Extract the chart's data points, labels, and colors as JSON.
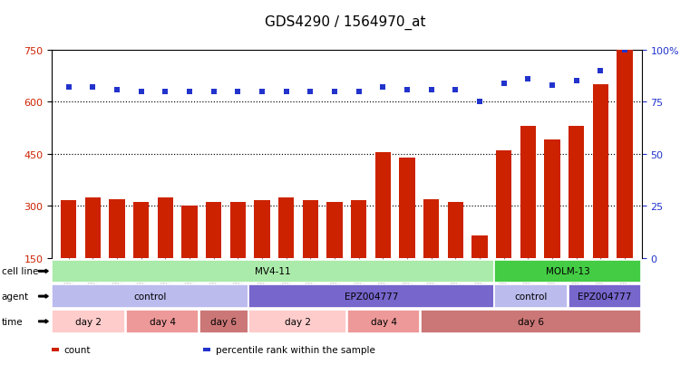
{
  "title": "GDS4290 / 1564970_at",
  "samples": [
    "GSM739151",
    "GSM739152",
    "GSM739153",
    "GSM739157",
    "GSM739158",
    "GSM739159",
    "GSM739163",
    "GSM739164",
    "GSM739165",
    "GSM739148",
    "GSM739149",
    "GSM739150",
    "GSM739154",
    "GSM739155",
    "GSM739156",
    "GSM739160",
    "GSM739161",
    "GSM739162",
    "GSM739169",
    "GSM739170",
    "GSM739171",
    "GSM739166",
    "GSM739167",
    "GSM739168"
  ],
  "counts": [
    315,
    325,
    320,
    310,
    325,
    300,
    310,
    310,
    315,
    325,
    315,
    310,
    315,
    455,
    440,
    320,
    310,
    215,
    460,
    530,
    490,
    530,
    650,
    750
  ],
  "percentile": [
    82,
    82,
    81,
    80,
    80,
    80,
    80,
    80,
    80,
    80,
    80,
    80,
    80,
    82,
    81,
    81,
    81,
    75,
    84,
    86,
    83,
    85,
    90,
    100
  ],
  "bar_color": "#cc2200",
  "dot_color": "#2233cc",
  "ylim_min": 150,
  "ylim_max": 750,
  "y2lim_min": 0,
  "y2lim_max": 100,
  "yticks": [
    150,
    300,
    450,
    600,
    750
  ],
  "y2ticks": [
    0,
    25,
    50,
    75,
    100
  ],
  "y2tick_labels": [
    "0",
    "25",
    "50",
    "75",
    "100%"
  ],
  "dotted_lines": [
    300,
    450,
    600
  ],
  "cell_line_groups": [
    {
      "label": "MV4-11",
      "start": 0,
      "end": 17,
      "color": "#aaeaaa"
    },
    {
      "label": "MOLM-13",
      "start": 18,
      "end": 23,
      "color": "#44cc44"
    }
  ],
  "agent_groups": [
    {
      "label": "control",
      "start": 0,
      "end": 7,
      "color": "#bbbbee"
    },
    {
      "label": "EPZ004777",
      "start": 8,
      "end": 17,
      "color": "#7766cc"
    },
    {
      "label": "control",
      "start": 18,
      "end": 20,
      "color": "#bbbbee"
    },
    {
      "label": "EPZ004777",
      "start": 21,
      "end": 23,
      "color": "#7766cc"
    }
  ],
  "time_groups": [
    {
      "label": "day 2",
      "start": 0,
      "end": 2,
      "color": "#ffcccc"
    },
    {
      "label": "day 4",
      "start": 3,
      "end": 5,
      "color": "#ee9999"
    },
    {
      "label": "day 6",
      "start": 6,
      "end": 7,
      "color": "#cc7777"
    },
    {
      "label": "day 2",
      "start": 8,
      "end": 11,
      "color": "#ffcccc"
    },
    {
      "label": "day 4",
      "start": 12,
      "end": 14,
      "color": "#ee9999"
    },
    {
      "label": "day 6",
      "start": 15,
      "end": 23,
      "color": "#cc7777"
    }
  ],
  "title_fontsize": 11,
  "axis_color_left": "#cc2200",
  "axis_color_right": "#2233cc",
  "plot_bg": "#ffffff"
}
